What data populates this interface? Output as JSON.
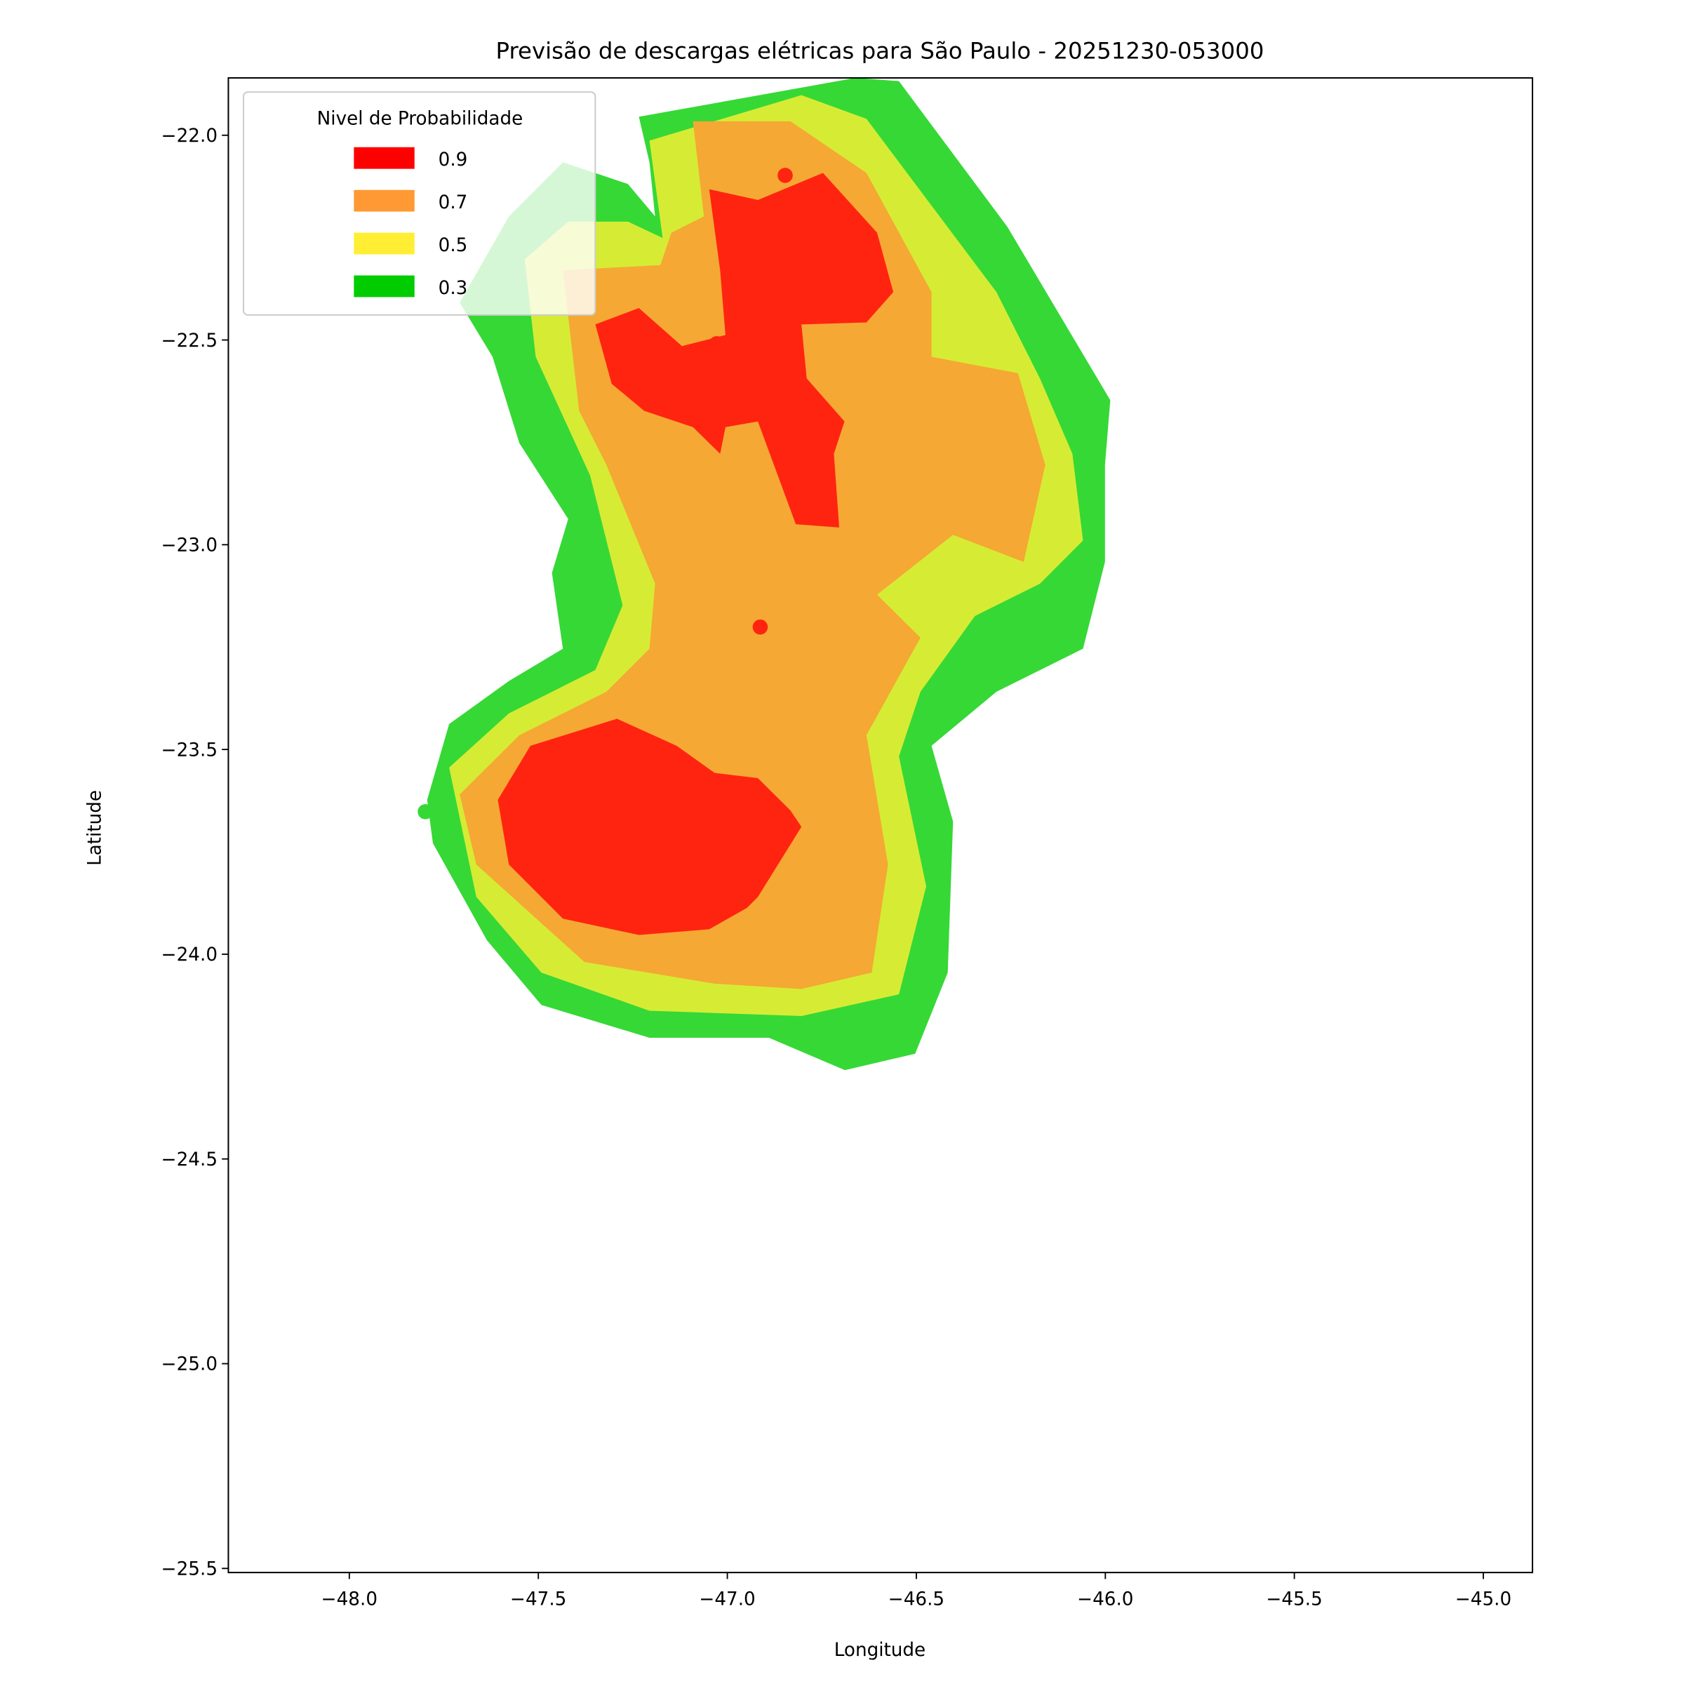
{
  "chart_data": {
    "type": "contour-map",
    "title": "Previsão de descargas elétricas para São Paulo - 20251230-053000",
    "xlabel": "Longitude",
    "ylabel": "Latitude",
    "xlim": [
      -48.32,
      -44.87
    ],
    "ylim": [
      -25.51,
      -21.86
    ],
    "xticks": [
      -48.0,
      -47.5,
      -47.0,
      -46.5,
      -46.0,
      -45.5,
      -45.0
    ],
    "xtick_labels": [
      "−48.0",
      "−47.5",
      "−47.0",
      "−46.5",
      "−46.0",
      "−45.5",
      "−45.0"
    ],
    "yticks": [
      -22.0,
      -22.5,
      -23.0,
      -23.5,
      -24.0,
      -24.5,
      -25.0,
      -25.5
    ],
    "ytick_labels": [
      "−22.0",
      "−22.5",
      "−23.0",
      "−23.5",
      "−24.0",
      "−24.5",
      "−25.0",
      "−25.5"
    ],
    "legend": {
      "title": "Nivel de Probabilidade",
      "placement": "top-left",
      "entries": [
        {
          "label": "0.9",
          "color": "#ff0000"
        },
        {
          "label": "0.7",
          "color": "#ff9933"
        },
        {
          "label": "0.5",
          "color": "#ffee33"
        },
        {
          "label": "0.3",
          "color": "#00cc00"
        }
      ]
    },
    "contours": [
      {
        "level": 0.3,
        "color": "#36d836",
        "polygon": [
          [
            -47.234,
            -21.955
          ],
          [
            -46.661,
            -21.86
          ],
          [
            -46.546,
            -21.868
          ],
          [
            -46.259,
            -22.224
          ],
          [
            -45.987,
            -22.647
          ],
          [
            -46.001,
            -22.805
          ],
          [
            -46.001,
            -23.042
          ],
          [
            -46.059,
            -23.254
          ],
          [
            -46.288,
            -23.359
          ],
          [
            -46.46,
            -23.491
          ],
          [
            -46.403,
            -23.676
          ],
          [
            -46.417,
            -24.045
          ],
          [
            -46.503,
            -24.243
          ],
          [
            -46.689,
            -24.283
          ],
          [
            -46.89,
            -24.204
          ],
          [
            -47.206,
            -24.204
          ],
          [
            -47.492,
            -24.124
          ],
          [
            -47.636,
            -23.966
          ],
          [
            -47.779,
            -23.729
          ],
          [
            -47.794,
            -23.623
          ],
          [
            -47.736,
            -23.438
          ],
          [
            -47.578,
            -23.333
          ],
          [
            -47.435,
            -23.254
          ],
          [
            -47.464,
            -23.069
          ],
          [
            -47.421,
            -22.937
          ],
          [
            -47.55,
            -22.752
          ],
          [
            -47.621,
            -22.541
          ],
          [
            -47.708,
            -22.409
          ],
          [
            -47.578,
            -22.198
          ],
          [
            -47.435,
            -22.066
          ],
          [
            -47.263,
            -22.119
          ],
          [
            -47.191,
            -22.198
          ],
          [
            -47.206,
            -22.066
          ]
        ]
      },
      {
        "level": 0.5,
        "color": "#d6ec34",
        "polygon": [
          [
            -47.206,
            -22.013
          ],
          [
            -46.804,
            -21.902
          ],
          [
            -46.632,
            -21.96
          ],
          [
            -46.46,
            -22.172
          ],
          [
            -46.288,
            -22.383
          ],
          [
            -46.173,
            -22.594
          ],
          [
            -46.087,
            -22.778
          ],
          [
            -46.059,
            -22.99
          ],
          [
            -46.173,
            -23.095
          ],
          [
            -46.345,
            -23.174
          ],
          [
            -46.489,
            -23.359
          ],
          [
            -46.546,
            -23.517
          ],
          [
            -46.474,
            -23.834
          ],
          [
            -46.546,
            -24.098
          ],
          [
            -46.804,
            -24.151
          ],
          [
            -47.206,
            -24.138
          ],
          [
            -47.492,
            -24.045
          ],
          [
            -47.664,
            -23.86
          ],
          [
            -47.736,
            -23.544
          ],
          [
            -47.578,
            -23.412
          ],
          [
            -47.349,
            -23.306
          ],
          [
            -47.277,
            -23.148
          ],
          [
            -47.363,
            -22.831
          ],
          [
            -47.507,
            -22.541
          ],
          [
            -47.536,
            -22.303
          ],
          [
            -47.421,
            -22.211
          ],
          [
            -47.263,
            -22.211
          ],
          [
            -47.171,
            -22.251
          ]
        ]
      },
      {
        "level": 0.7,
        "color": "#f5a833",
        "polygon": [
          [
            -47.091,
            -21.966
          ],
          [
            -46.833,
            -21.966
          ],
          [
            -46.632,
            -22.092
          ],
          [
            -46.46,
            -22.383
          ],
          [
            -46.46,
            -22.541
          ],
          [
            -46.231,
            -22.581
          ],
          [
            -46.159,
            -22.805
          ],
          [
            -46.216,
            -23.042
          ],
          [
            -46.403,
            -22.976
          ],
          [
            -46.604,
            -23.122
          ],
          [
            -46.489,
            -23.227
          ],
          [
            -46.632,
            -23.465
          ],
          [
            -46.575,
            -23.781
          ],
          [
            -46.618,
            -24.045
          ],
          [
            -46.804,
            -24.085
          ],
          [
            -47.034,
            -24.072
          ],
          [
            -47.378,
            -24.019
          ],
          [
            -47.664,
            -23.781
          ],
          [
            -47.708,
            -23.61
          ],
          [
            -47.55,
            -23.465
          ],
          [
            -47.32,
            -23.359
          ],
          [
            -47.206,
            -23.254
          ],
          [
            -47.191,
            -23.095
          ],
          [
            -47.32,
            -22.805
          ],
          [
            -47.392,
            -22.673
          ],
          [
            -47.435,
            -22.33
          ],
          [
            -47.177,
            -22.317
          ],
          [
            -47.148,
            -22.238
          ],
          [
            -47.062,
            -22.198
          ]
        ]
      },
      {
        "level": 0.9,
        "color": "#ff2410",
        "polygon": [
          [
            -47.048,
            -22.132
          ],
          [
            -46.919,
            -22.158
          ],
          [
            -46.747,
            -22.092
          ],
          [
            -46.604,
            -22.238
          ],
          [
            -46.561,
            -22.383
          ],
          [
            -46.632,
            -22.457
          ],
          [
            -46.804,
            -22.462
          ],
          [
            -46.79,
            -22.594
          ],
          [
            -46.69,
            -22.699
          ],
          [
            -46.718,
            -22.778
          ],
          [
            -46.704,
            -22.958
          ],
          [
            -46.819,
            -22.95
          ],
          [
            -46.919,
            -22.699
          ],
          [
            -47.005,
            -22.713
          ],
          [
            -47.019,
            -22.778
          ],
          [
            -47.091,
            -22.713
          ],
          [
            -47.22,
            -22.673
          ],
          [
            -47.306,
            -22.607
          ],
          [
            -47.349,
            -22.462
          ],
          [
            -47.234,
            -22.422
          ],
          [
            -47.12,
            -22.515
          ],
          [
            -47.005,
            -22.488
          ],
          [
            -47.019,
            -22.33
          ]
        ]
      },
      {
        "level": 0.9,
        "color": "#ff2410",
        "polygon": [
          [
            -47.607,
            -23.623
          ],
          [
            -47.521,
            -23.491
          ],
          [
            -47.292,
            -23.425
          ],
          [
            -47.134,
            -23.491
          ],
          [
            -47.034,
            -23.557
          ],
          [
            -46.919,
            -23.57
          ],
          [
            -46.833,
            -23.649
          ],
          [
            -46.804,
            -23.689
          ],
          [
            -46.919,
            -23.86
          ],
          [
            -46.948,
            -23.887
          ],
          [
            -47.048,
            -23.939
          ],
          [
            -47.234,
            -23.953
          ],
          [
            -47.435,
            -23.913
          ],
          [
            -47.578,
            -23.781
          ]
        ]
      }
    ],
    "points": [
      {
        "lon": -46.847,
        "lat": -22.098,
        "level": 0.9,
        "color": "#ff2410"
      },
      {
        "lon": -47.028,
        "lat": -22.509,
        "level": 0.9,
        "color": "#ff2410"
      },
      {
        "lon": -47.097,
        "lat": -22.61,
        "level": 0.9,
        "color": "#ff2410"
      },
      {
        "lon": -46.913,
        "lat": -23.201,
        "level": 0.9,
        "color": "#ff2410"
      },
      {
        "lon": -47.799,
        "lat": -23.652,
        "level": 0.3,
        "color": "#36d836"
      }
    ]
  }
}
